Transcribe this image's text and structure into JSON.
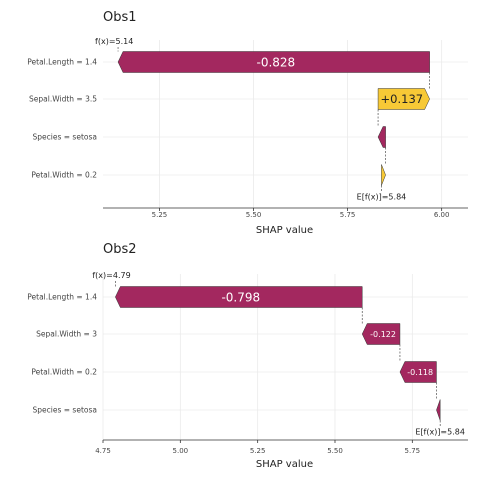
{
  "colors": {
    "negative": "#a3285f",
    "positive": "#f7c936",
    "border": "#333333",
    "grid": "#ebebeb"
  },
  "chart_data": [
    {
      "type": "waterfall",
      "title": "Obs1",
      "xlabel": "SHAP value",
      "xlim": [
        5.1,
        6.07
      ],
      "ticks": [
        5.25,
        5.5,
        5.75,
        6.0
      ],
      "tick_labels": [
        "5.25",
        "5.50",
        "5.75",
        "6.00"
      ],
      "baseline": 5.84,
      "prediction": 5.14,
      "baseline_label": "E[f(x)]=5.84",
      "prediction_label": "f(x)=5.14",
      "bars": [
        {
          "feature": "Petal.Length = 1.4",
          "value": -0.828,
          "label": "-0.828"
        },
        {
          "feature": "Sepal.Width = 3.5",
          "value": 0.137,
          "label": "+0.137"
        },
        {
          "feature": "Species = setosa",
          "value": -0.02,
          "label": ""
        },
        {
          "feature": "Petal.Width = 0.2",
          "value": 0.011,
          "label": ""
        }
      ]
    },
    {
      "type": "waterfall",
      "title": "Obs2",
      "xlabel": "SHAP value",
      "xlim": [
        4.75,
        5.93
      ],
      "ticks": [
        4.75,
        5.0,
        5.25,
        5.5,
        5.75
      ],
      "tick_labels": [
        "4.75",
        "5.00",
        "5.25",
        "5.50",
        "5.75"
      ],
      "baseline": 5.84,
      "prediction": 4.79,
      "baseline_label": "E[f(x)]=5.84",
      "prediction_label": "f(x)=4.79",
      "bars": [
        {
          "feature": "Petal.Length = 1.4",
          "value": -0.798,
          "label": "-0.798"
        },
        {
          "feature": "Sepal.Width = 3",
          "value": -0.122,
          "label": "-0.122"
        },
        {
          "feature": "Petal.Width = 0.2",
          "value": -0.118,
          "label": "-0.118"
        },
        {
          "feature": "Species = setosa",
          "value": -0.012,
          "label": ""
        }
      ]
    }
  ]
}
